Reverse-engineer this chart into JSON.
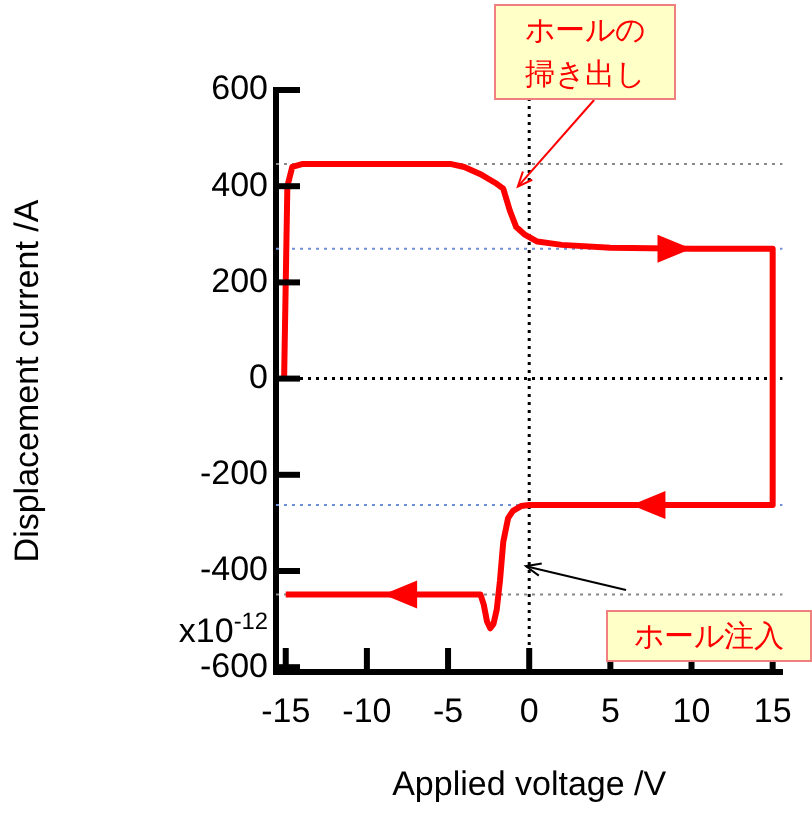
{
  "chart_data": {
    "type": "line",
    "xlabel": "Applied voltage /V",
    "ylabel": "Displacement current /A",
    "x": [
      -15.1,
      -14.9,
      -14.6,
      -14,
      -10,
      -4.8,
      -4,
      -3,
      -2.5,
      -2,
      -1.6,
      -1.2,
      -0.8,
      -0.3,
      0.5,
      2,
      5,
      10,
      15,
      15,
      10,
      5,
      0,
      -0.5,
      -1,
      -1.3,
      -1.6,
      -1.8,
      -2,
      -2.2,
      -2.4,
      -2.6,
      -2.8,
      -3,
      -3.5,
      -10,
      -15
    ],
    "values": [
      0,
      400,
      440,
      446,
      446,
      446,
      440,
      425,
      415,
      405,
      395,
      350,
      315,
      300,
      285,
      278,
      272,
      270,
      270,
      -263,
      -263,
      -263,
      -263,
      -265,
      -275,
      -290,
      -340,
      -420,
      -480,
      -510,
      -519,
      -505,
      -470,
      -449,
      -449,
      -449,
      -449
    ],
    "color": "#ff0000",
    "marker": "none",
    "line_style": "solid",
    "grid": false,
    "legend": false,
    "xlim": [
      -15.6,
      15.6
    ],
    "ylim": [
      -610,
      600
    ],
    "xticks": [
      -15,
      -10,
      -5,
      0,
      5,
      10,
      15
    ],
    "yticks": [
      -600,
      -400,
      -200,
      0,
      200,
      400,
      600
    ],
    "ref_lines": [
      {
        "axis": "x",
        "value": 0,
        "color": "#000000",
        "line_style": "dotted"
      },
      {
        "axis": "y",
        "value": 0,
        "color": "#000000",
        "line_style": "dotted"
      },
      {
        "axis": "y",
        "value": 446,
        "color": "#888888",
        "line_style": "dotted"
      },
      {
        "axis": "y",
        "value": 270,
        "color": "#6f8fd8",
        "line_style": "dotted"
      },
      {
        "axis": "y",
        "value": -263,
        "color": "#6f8fd8",
        "line_style": "dotted"
      },
      {
        "axis": "y",
        "value": -449,
        "color": "#888888",
        "line_style": "dotted"
      }
    ],
    "annotations": [
      "ホールの掃き出し",
      {
        "text": "ホール注入",
        "x": -0.2,
        "y": -390
      },
      "x10$^{-12}$"
    ]
  }
}
